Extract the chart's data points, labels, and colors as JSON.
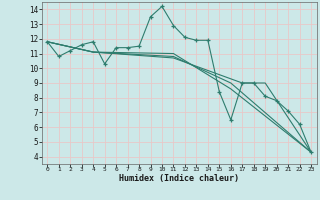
{
  "xlabel": "Humidex (Indice chaleur)",
  "xlim": [
    -0.5,
    23.5
  ],
  "ylim": [
    3.5,
    14.5
  ],
  "xticks": [
    0,
    1,
    2,
    3,
    4,
    5,
    6,
    7,
    8,
    9,
    10,
    11,
    12,
    13,
    14,
    15,
    16,
    17,
    18,
    19,
    20,
    21,
    22,
    23
  ],
  "yticks": [
    4,
    5,
    6,
    7,
    8,
    9,
    10,
    11,
    12,
    13,
    14
  ],
  "bg_color": "#cce8e8",
  "grid_color": "#b8d8d8",
  "line_color": "#2e7d6e",
  "line1": {
    "x": [
      0,
      1,
      2,
      3,
      4,
      5,
      6,
      7,
      8,
      9,
      10,
      11,
      12,
      13,
      14,
      15,
      16,
      17,
      18,
      19,
      20,
      21,
      22,
      23
    ],
    "y": [
      11.8,
      10.8,
      11.2,
      11.6,
      11.8,
      10.3,
      11.4,
      11.4,
      11.5,
      13.5,
      14.2,
      12.9,
      12.1,
      11.9,
      11.9,
      8.4,
      6.5,
      9.0,
      9.0,
      8.1,
      7.8,
      7.1,
      6.2,
      4.3
    ]
  },
  "line2": {
    "x": [
      0,
      4,
      11,
      16,
      23
    ],
    "y": [
      11.8,
      11.1,
      11.0,
      8.6,
      4.3
    ]
  },
  "line3": {
    "x": [
      0,
      4,
      11,
      16,
      23
    ],
    "y": [
      11.8,
      11.1,
      10.8,
      9.0,
      4.3
    ]
  },
  "line4": {
    "x": [
      0,
      4,
      11,
      17,
      19,
      23
    ],
    "y": [
      11.8,
      11.1,
      10.7,
      9.0,
      9.0,
      4.3
    ]
  }
}
